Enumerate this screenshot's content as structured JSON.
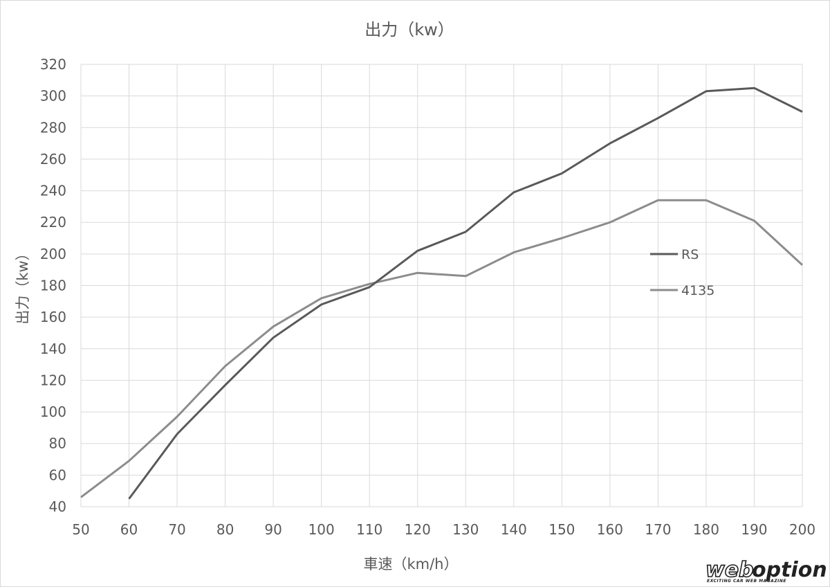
{
  "chart_data": {
    "type": "line",
    "title": "出力（kw）",
    "xlabel": "車速（km/h）",
    "ylabel": "出力（kw）",
    "x": [
      50,
      60,
      70,
      80,
      90,
      100,
      110,
      120,
      130,
      140,
      150,
      160,
      170,
      180,
      190,
      200
    ],
    "xlim": [
      50,
      200
    ],
    "ylim": [
      40,
      320
    ],
    "xticks": [
      50,
      60,
      70,
      80,
      90,
      100,
      110,
      120,
      130,
      140,
      150,
      160,
      170,
      180,
      190,
      200
    ],
    "yticks": [
      40,
      60,
      80,
      100,
      120,
      140,
      160,
      180,
      200,
      220,
      240,
      260,
      280,
      300,
      320
    ],
    "grid": true,
    "legend_position": "right",
    "series": [
      {
        "name": "RS",
        "color": "#595959",
        "values": [
          null,
          45,
          86,
          117,
          147,
          168,
          179,
          202,
          214,
          239,
          251,
          270,
          286,
          303,
          305,
          290
        ]
      },
      {
        "name": "4135",
        "color": "#8c8c8c",
        "values": [
          46,
          69,
          97,
          129,
          154,
          172,
          181,
          188,
          186,
          201,
          210,
          220,
          234,
          234,
          221,
          193
        ]
      }
    ]
  },
  "watermark": {
    "logo_text": "weboption",
    "tagline": "EXCITING CAR WEB MAGAZINE"
  }
}
